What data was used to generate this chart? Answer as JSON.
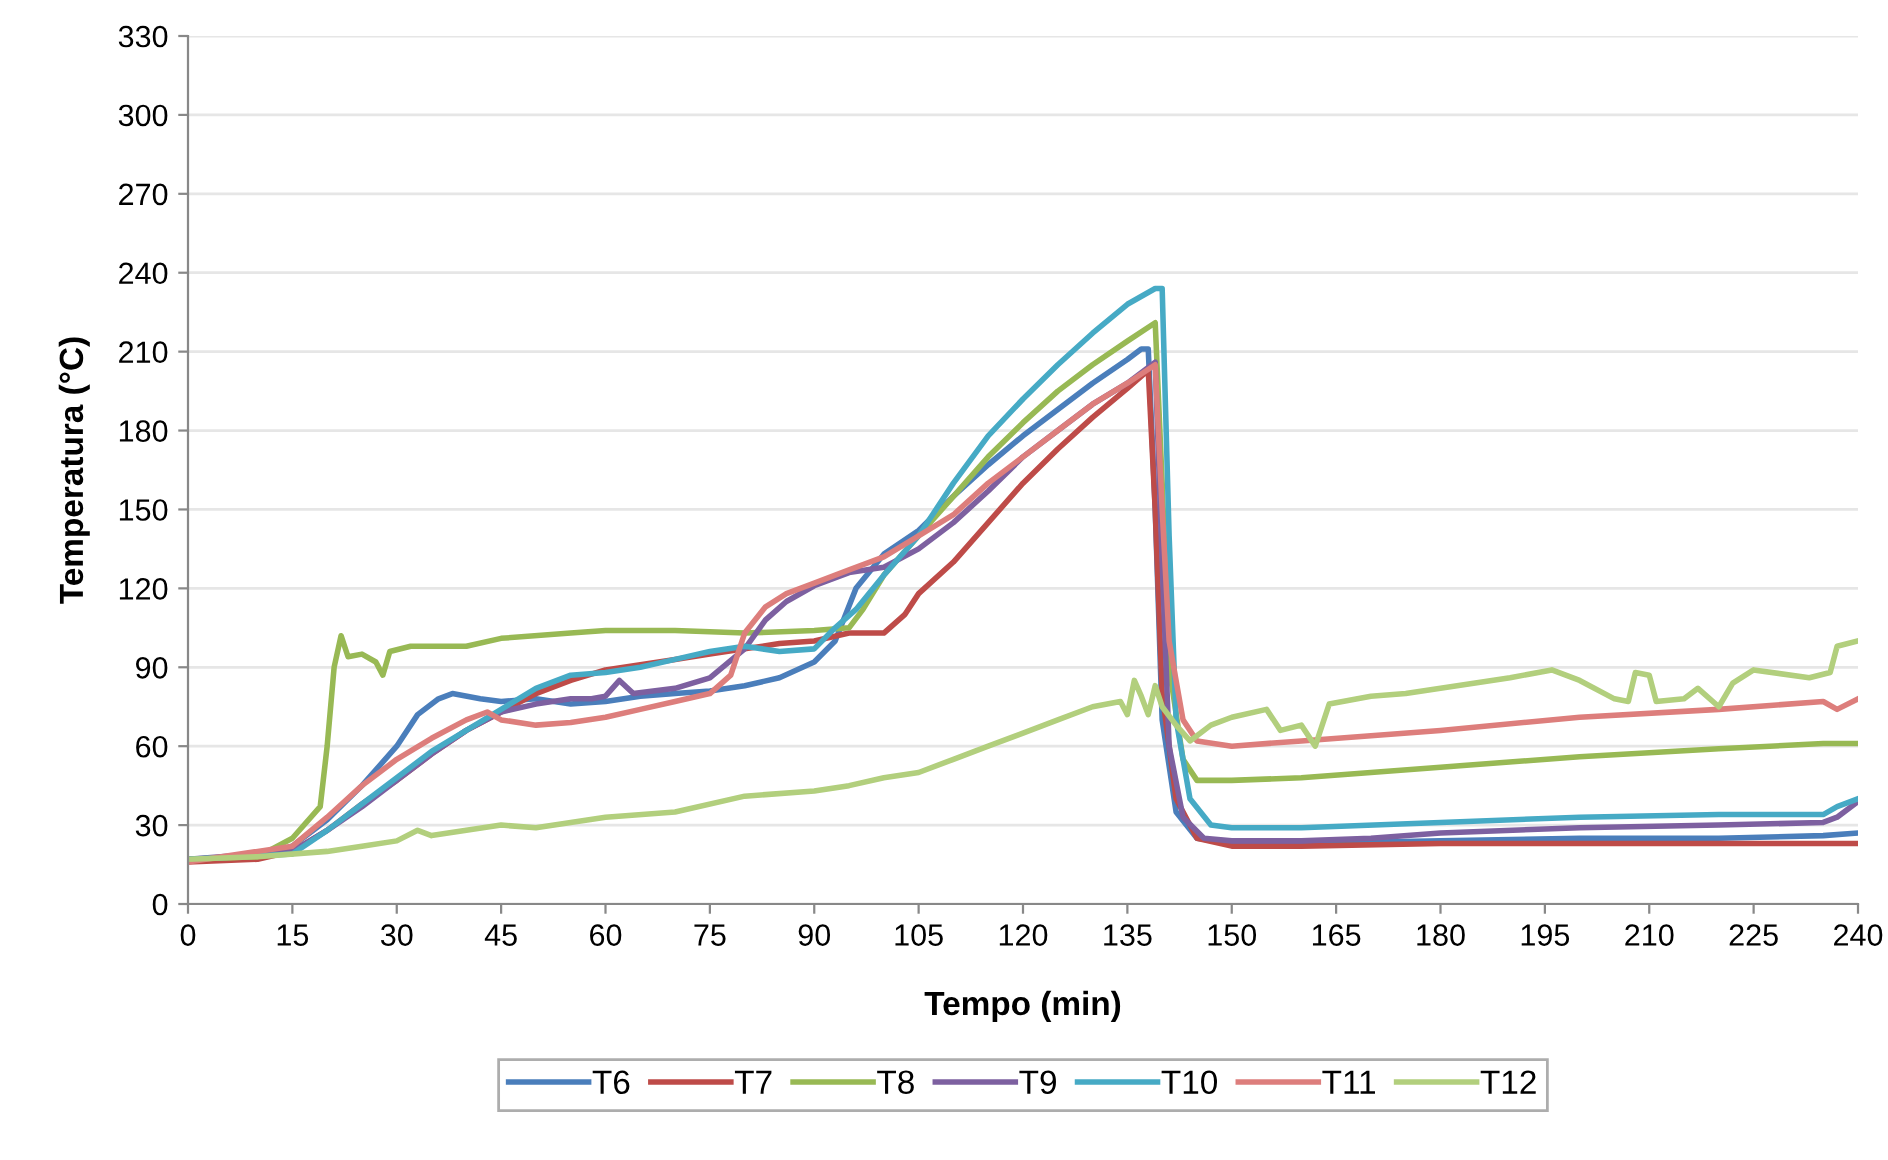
{
  "chart_data": {
    "type": "line",
    "xlabel": "Tempo (min)",
    "ylabel": "Temperatura (°C)",
    "xlim": [
      0,
      240
    ],
    "xticks": [
      0,
      15,
      30,
      45,
      60,
      75,
      90,
      105,
      120,
      135,
      150,
      165,
      180,
      195,
      210,
      225,
      240
    ],
    "ylim": [
      0,
      330
    ],
    "yticks": [
      0,
      30,
      60,
      90,
      120,
      150,
      180,
      210,
      240,
      270,
      300,
      330
    ],
    "grid": "y",
    "legend": "bottom",
    "marker": "none",
    "line_style": "solid",
    "series": [
      {
        "name": "T6",
        "color": "#4a7ebb",
        "x": [
          0,
          10,
          15,
          20,
          25,
          30,
          33,
          36,
          38,
          42,
          45,
          50,
          55,
          60,
          65,
          70,
          75,
          80,
          85,
          90,
          93,
          96,
          100,
          105,
          110,
          115,
          120,
          125,
          130,
          135,
          137,
          138,
          139,
          140,
          142,
          145,
          150,
          160,
          180,
          200,
          220,
          235,
          240
        ],
        "values": [
          17,
          18,
          22,
          32,
          45,
          60,
          72,
          78,
          80,
          78,
          77,
          78,
          76,
          77,
          79,
          80,
          81,
          83,
          86,
          92,
          100,
          120,
          133,
          142,
          155,
          167,
          178,
          188,
          198,
          207,
          211,
          211,
          150,
          70,
          35,
          25,
          23,
          23,
          24,
          25,
          25,
          26,
          27
        ]
      },
      {
        "name": "T7",
        "color": "#be4b48",
        "x": [
          0,
          10,
          15,
          20,
          25,
          30,
          35,
          40,
          45,
          50,
          55,
          60,
          65,
          70,
          75,
          80,
          85,
          90,
          95,
          100,
          103,
          105,
          110,
          115,
          120,
          125,
          130,
          135,
          138,
          139,
          140,
          142,
          145,
          150,
          160,
          180,
          200,
          220,
          240
        ],
        "values": [
          16,
          17,
          20,
          28,
          38,
          47,
          57,
          66,
          73,
          80,
          85,
          89,
          91,
          93,
          95,
          97,
          99,
          100,
          103,
          103,
          110,
          118,
          130,
          145,
          160,
          173,
          185,
          196,
          203,
          150,
          80,
          40,
          25,
          22,
          22,
          23,
          23,
          23,
          23
        ]
      },
      {
        "name": "T8",
        "color": "#98b954",
        "x": [
          0,
          10,
          15,
          19,
          20,
          21,
          22,
          23,
          25,
          27,
          28,
          29,
          32,
          40,
          45,
          55,
          60,
          70,
          80,
          90,
          95,
          97,
          100,
          105,
          110,
          115,
          120,
          125,
          130,
          135,
          139,
          140,
          141,
          143,
          145,
          150,
          160,
          170,
          180,
          200,
          220,
          235,
          240
        ],
        "values": [
          17,
          18,
          25,
          37,
          60,
          90,
          102,
          94,
          95,
          92,
          87,
          96,
          98,
          98,
          101,
          103,
          104,
          104,
          103,
          104,
          105,
          112,
          125,
          140,
          155,
          170,
          183,
          195,
          205,
          214,
          221,
          160,
          90,
          55,
          47,
          47,
          48,
          50,
          52,
          56,
          59,
          61,
          61
        ]
      },
      {
        "name": "T9",
        "color": "#7d60a0",
        "x": [
          0,
          15,
          20,
          25,
          30,
          35,
          40,
          45,
          50,
          55,
          58,
          60,
          62,
          64,
          70,
          75,
          80,
          83,
          86,
          90,
          95,
          100,
          105,
          110,
          115,
          120,
          125,
          130,
          135,
          139,
          140,
          141,
          143,
          146,
          150,
          160,
          170,
          180,
          200,
          220,
          235,
          237,
          240
        ],
        "values": [
          17,
          20,
          28,
          37,
          47,
          57,
          66,
          73,
          76,
          78,
          78,
          79,
          85,
          80,
          82,
          86,
          97,
          108,
          115,
          121,
          126,
          128,
          135,
          145,
          157,
          170,
          180,
          190,
          198,
          206,
          130,
          60,
          33,
          25,
          24,
          24,
          25,
          27,
          29,
          30,
          31,
          33,
          39
        ]
      },
      {
        "name": "T10",
        "color": "#46aac5",
        "x": [
          0,
          15,
          20,
          25,
          30,
          35,
          40,
          45,
          50,
          55,
          60,
          65,
          70,
          75,
          80,
          85,
          90,
          93,
          96,
          100,
          105,
          110,
          115,
          120,
          125,
          130,
          135,
          139,
          140,
          141,
          142,
          144,
          147,
          150,
          160,
          180,
          200,
          220,
          235,
          237,
          240
        ],
        "values": [
          17,
          19,
          28,
          38,
          48,
          58,
          66,
          74,
          82,
          87,
          88,
          90,
          93,
          96,
          98,
          96,
          97,
          105,
          112,
          125,
          140,
          160,
          178,
          192,
          205,
          217,
          228,
          234,
          234,
          140,
          70,
          40,
          30,
          29,
          29,
          31,
          33,
          34,
          34,
          37,
          40
        ]
      },
      {
        "name": "T11",
        "color": "#dd7e7c",
        "x": [
          0,
          15,
          20,
          25,
          30,
          35,
          40,
          43,
          45,
          50,
          55,
          60,
          65,
          70,
          75,
          78,
          80,
          83,
          86,
          90,
          95,
          100,
          105,
          110,
          115,
          120,
          125,
          130,
          135,
          139,
          140,
          141,
          143,
          145,
          150,
          160,
          180,
          200,
          220,
          235,
          237,
          240
        ],
        "values": [
          16,
          22,
          33,
          45,
          55,
          63,
          70,
          73,
          70,
          68,
          69,
          71,
          74,
          77,
          80,
          87,
          103,
          113,
          118,
          122,
          127,
          132,
          140,
          148,
          160,
          170,
          180,
          190,
          198,
          205,
          150,
          100,
          70,
          62,
          60,
          62,
          66,
          71,
          74,
          77,
          74,
          78
        ]
      },
      {
        "name": "T12",
        "color": "#b2cf7d",
        "x": [
          0,
          10,
          20,
          25,
          30,
          33,
          35,
          40,
          45,
          50,
          55,
          60,
          70,
          80,
          90,
          95,
          100,
          105,
          110,
          115,
          120,
          125,
          130,
          134,
          135,
          136,
          137,
          138,
          139,
          140,
          142,
          144,
          147,
          150,
          155,
          157,
          160,
          162,
          164,
          170,
          175,
          180,
          190,
          196,
          200,
          205,
          207,
          208,
          210,
          211,
          215,
          217,
          220,
          222,
          225,
          233,
          236,
          237,
          240
        ],
        "values": [
          17,
          18,
          20,
          22,
          24,
          28,
          26,
          28,
          30,
          29,
          31,
          33,
          35,
          41,
          43,
          45,
          48,
          50,
          55,
          60,
          65,
          70,
          75,
          77,
          72,
          85,
          79,
          72,
          83,
          75,
          68,
          62,
          68,
          71,
          74,
          66,
          68,
          60,
          76,
          79,
          80,
          82,
          86,
          89,
          85,
          78,
          77,
          88,
          87,
          77,
          78,
          82,
          75,
          84,
          89,
          86,
          88,
          98,
          100
        ]
      }
    ]
  }
}
